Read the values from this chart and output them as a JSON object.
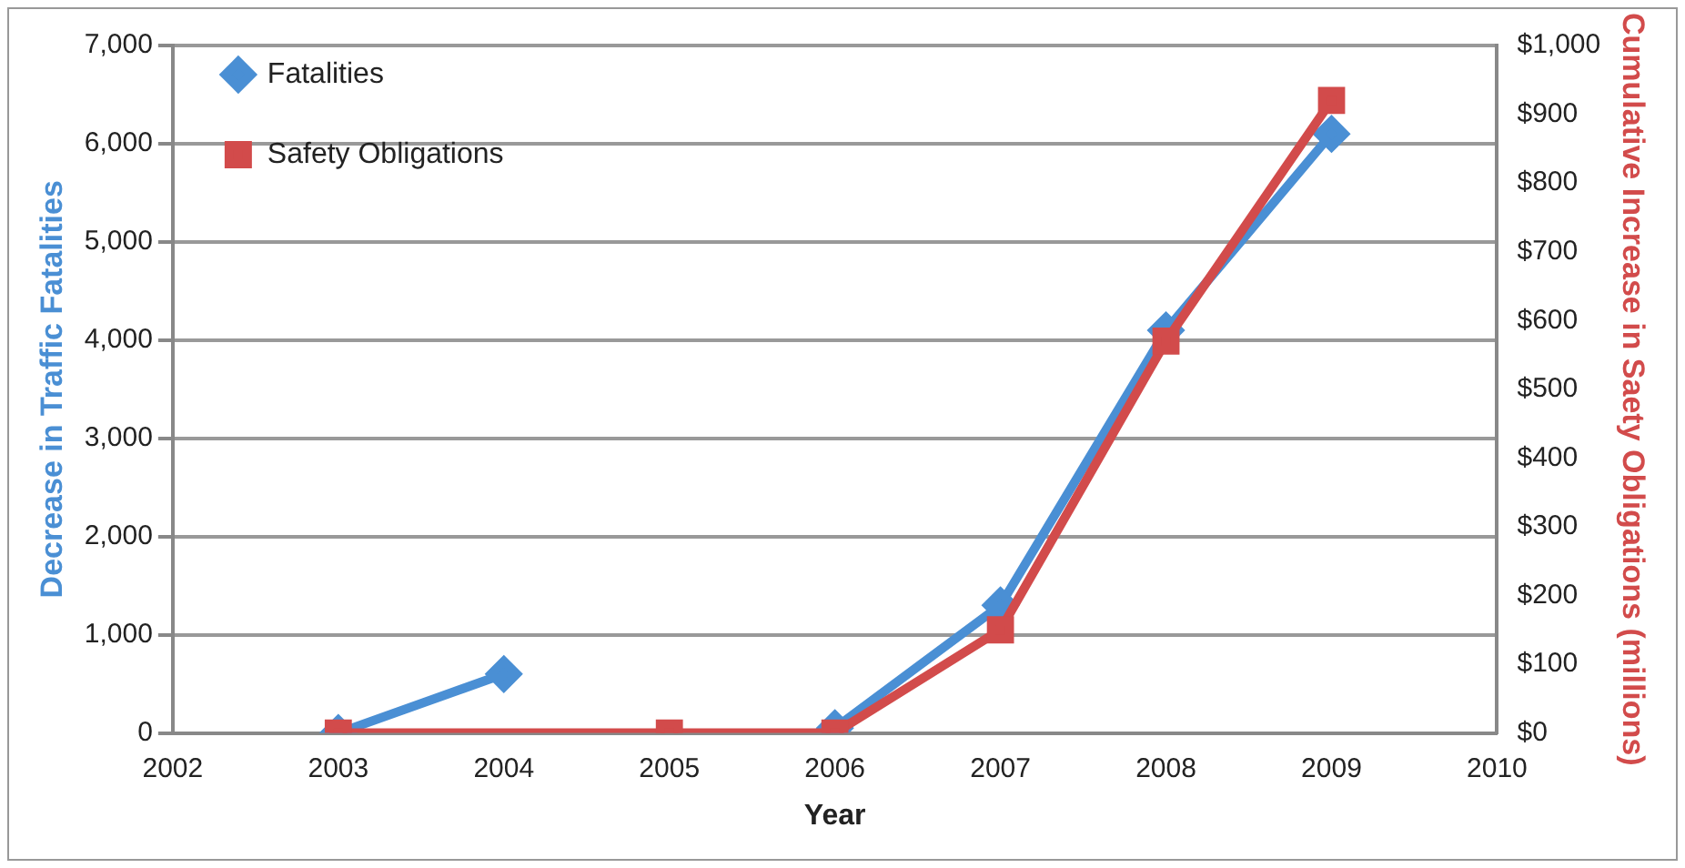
{
  "chart_data": {
    "type": "line",
    "xlabel": "Year",
    "ylabel": "Decrease in Traffic Fatalities",
    "y2label": "Cumulative Increase in Saety Obligations (millions)",
    "series": [
      {
        "name": "Fatalities",
        "color": "#4a8fd4",
        "marker": "diamond",
        "x": [
          2003,
          2004,
          2005,
          2006,
          2007,
          2008,
          2009
        ],
        "values": [
          0,
          600,
          null,
          50,
          1300,
          4100,
          6100
        ]
      },
      {
        "name": "Safety Obligations",
        "color": "#d24b4b",
        "marker": "square",
        "axis": "y2",
        "x": [
          2003,
          2005,
          2006,
          2007,
          2008,
          2009
        ],
        "values": [
          0,
          0,
          0,
          150,
          570,
          920
        ]
      }
    ],
    "xlim": [
      2002,
      2010
    ],
    "xticks": [
      2002,
      2003,
      2004,
      2005,
      2006,
      2007,
      2008,
      2009,
      2010
    ],
    "ylim": [
      0,
      7000
    ],
    "yticks": [
      0,
      {
        "value": 1000,
        "label": "1,000"
      },
      {
        "value": 2000,
        "label": "2,000"
      },
      {
        "value": 3000,
        "label": "3,000"
      },
      {
        "value": 4000,
        "label": "4,000"
      },
      {
        "value": 5000,
        "label": "5,000"
      },
      {
        "value": 6000,
        "label": "6,000"
      },
      {
        "value": 7000,
        "label": "7,000"
      }
    ],
    "y2lim": [
      0,
      1000
    ],
    "y2ticks": [
      {
        "value": 0,
        "label": "$0"
      },
      {
        "value": 100,
        "label": "$100"
      },
      {
        "value": 200,
        "label": "$200"
      },
      {
        "value": 300,
        "label": "$300"
      },
      {
        "value": 400,
        "label": "$400"
      },
      {
        "value": 500,
        "label": "$500"
      },
      {
        "value": 600,
        "label": "$600"
      },
      {
        "value": 700,
        "label": "$700"
      },
      {
        "value": 800,
        "label": "$800"
      },
      {
        "value": 900,
        "label": "$900"
      },
      {
        "value": 1000,
        "label": "$1,000"
      }
    ],
    "grid": "y",
    "legend": "top left",
    "line_style": "solid"
  }
}
